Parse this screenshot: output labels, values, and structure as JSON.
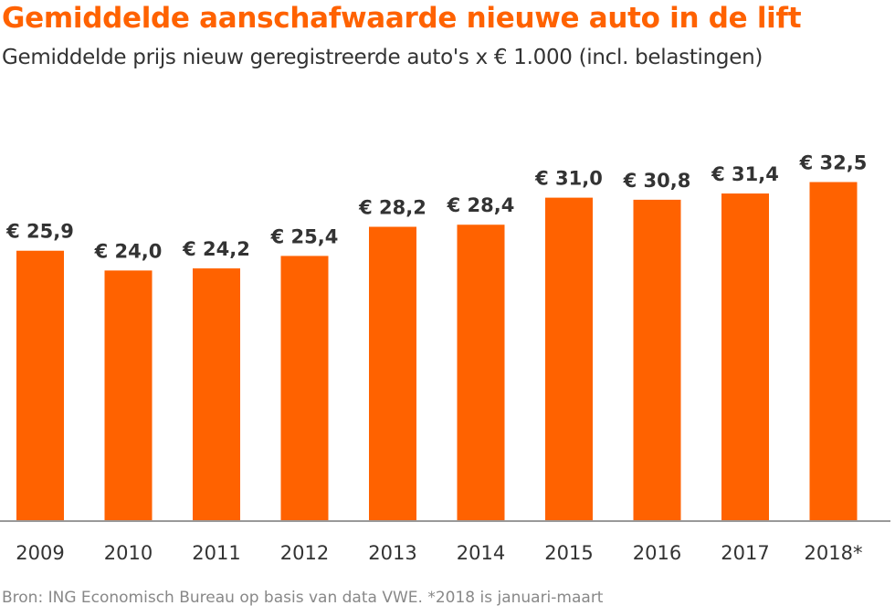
{
  "chart_data": {
    "type": "bar",
    "title": "Gemiddelde aanschafwaarde nieuwe auto in de lift",
    "subtitle": "Gemiddelde prijs nieuw geregistreerde auto's x € 1.000 (incl. belastingen)",
    "categories": [
      "2009",
      "2010",
      "2011",
      "2012",
      "2013",
      "2014",
      "2015",
      "2016",
      "2017",
      "2018*"
    ],
    "values": [
      25.9,
      24.0,
      24.2,
      25.4,
      28.2,
      28.4,
      31.0,
      30.8,
      31.4,
      32.5
    ],
    "data_labels": [
      "€ 25,9",
      "€ 24,0",
      "€ 24,2",
      "€ 25,4",
      "€ 28,2",
      "€ 28,4",
      "€ 31,0",
      "€ 30,8",
      "€ 31,4",
      "€ 32,5"
    ],
    "ylim": [
      0,
      35
    ],
    "grid": false,
    "bar_color": "#ff6200",
    "axis_color": "#999999",
    "source": "Bron: ING Economisch Bureau op basis van data VWE. *2018 is januari-maart"
  }
}
